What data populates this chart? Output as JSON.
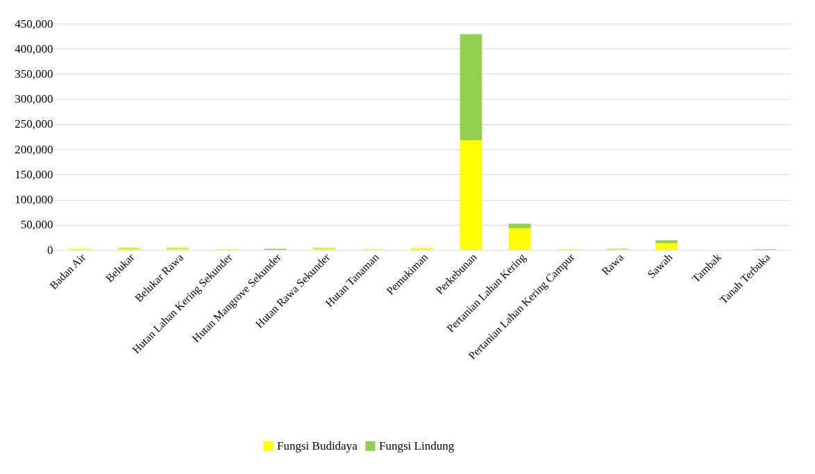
{
  "chart_data": {
    "type": "bar",
    "stacked": true,
    "categories": [
      "Badan Air",
      "Belukar",
      "Belukar Rawa",
      "Hutan Lahan Kering Sekunder",
      "Hutan Mangrove Sekunder",
      "Hutan Rawa Sekunder",
      "Hutan Tanaman",
      "Pemukiman",
      "Perkebunan",
      "Pertanian Lahan Kering",
      "Pertanian Lahan Kering Campur",
      "Rawa",
      "Sawah",
      "Tambak",
      "Tanah Terbuka"
    ],
    "series": [
      {
        "name": "Fungsi Budidaya",
        "color": "#ffff00",
        "values": [
          2000,
          3000,
          3000,
          1000,
          0,
          3000,
          1000,
          4000,
          218000,
          43000,
          1000,
          1000,
          13000,
          0,
          0
        ]
      },
      {
        "name": "Fungsi Lindung",
        "color": "#92d050",
        "values": [
          0,
          1000,
          1000,
          0,
          2000,
          1000,
          0,
          0,
          211000,
          9000,
          0,
          1000,
          6000,
          0,
          1000
        ]
      }
    ],
    "ylim": [
      0,
      450000
    ],
    "yticks": [
      0,
      {
        "value": 50000,
        "label": "50,000"
      },
      {
        "value": 100000,
        "label": "100,000"
      },
      {
        "value": 150000,
        "label": "150,000"
      },
      {
        "value": 200000,
        "label": "200,000"
      },
      {
        "value": 250000,
        "label": "250,000"
      },
      {
        "value": 300000,
        "label": "300,000"
      },
      {
        "value": 350000,
        "label": "350,000"
      },
      {
        "value": 400000,
        "label": "400,000"
      },
      {
        "value": 450000,
        "label": "450,000"
      }
    ],
    "grid": "y",
    "legend": "bottom"
  }
}
